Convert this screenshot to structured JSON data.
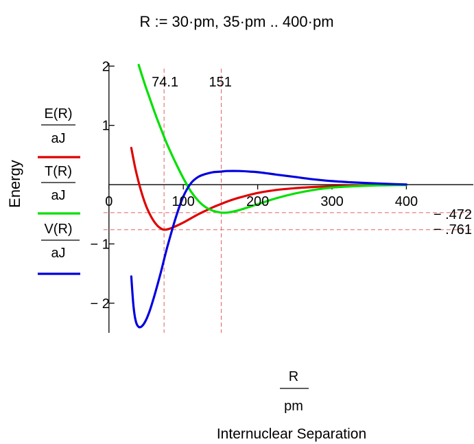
{
  "header": {
    "range_definition": "R := 30·pm, 35·pm .. 400·pm"
  },
  "chart_data": {
    "type": "line",
    "xlabel_fraction": {
      "numerator": "R",
      "denominator": "pm"
    },
    "xlabel_caption": "Internuclear Separation",
    "ylabel": "Energy",
    "xlim": [
      -10,
      490
    ],
    "ylim": [
      -2.5,
      2.05
    ],
    "x_ticks": [
      {
        "value": 0,
        "label": "0"
      },
      {
        "value": 100,
        "label": "100"
      },
      {
        "value": 200,
        "label": "200"
      },
      {
        "value": 300,
        "label": "300"
      },
      {
        "value": 400,
        "label": "400"
      }
    ],
    "y_ticks": [
      {
        "value": 2,
        "label": "2"
      },
      {
        "value": 1,
        "label": "1"
      },
      {
        "value": -1,
        "label": "− 1"
      },
      {
        "value": -2,
        "label": "− 2"
      }
    ],
    "markers": {
      "vertical": [
        {
          "value": 74.1,
          "label": "74.1"
        },
        {
          "value": 151,
          "label": "151"
        }
      ],
      "horizontal": [
        {
          "value": -0.472,
          "label": "− .472"
        },
        {
          "value": -0.761,
          "label": "− .761"
        }
      ],
      "color": "#e06060"
    },
    "series": [
      {
        "id": "E",
        "legend_numerator": "E(R)",
        "legend_denominator": "aJ",
        "color": "#e00000",
        "x": [
          30,
          35,
          40,
          45,
          50,
          55,
          60,
          65,
          70,
          74,
          80,
          90,
          100,
          110,
          120,
          130,
          140,
          150,
          160,
          175,
          200,
          225,
          250,
          275,
          300,
          325,
          350,
          375,
          400
        ],
        "y": [
          0.62,
          0.3,
          0.04,
          -0.18,
          -0.36,
          -0.5,
          -0.61,
          -0.69,
          -0.74,
          -0.76,
          -0.75,
          -0.7,
          -0.64,
          -0.57,
          -0.5,
          -0.44,
          -0.38,
          -0.33,
          -0.28,
          -0.22,
          -0.14,
          -0.09,
          -0.06,
          -0.04,
          -0.025,
          -0.015,
          -0.01,
          -0.005,
          -0.003
        ]
      },
      {
        "id": "T",
        "legend_numerator": "T(R)",
        "legend_denominator": "aJ",
        "color": "#00e000",
        "x": [
          40,
          45,
          50,
          55,
          60,
          65,
          70,
          75,
          80,
          90,
          100,
          110,
          120,
          130,
          140,
          150,
          160,
          175,
          200,
          225,
          250,
          275,
          300,
          325,
          350,
          375,
          400
        ],
        "y": [
          2.02,
          1.82,
          1.63,
          1.45,
          1.27,
          1.1,
          0.94,
          0.78,
          0.63,
          0.36,
          0.11,
          -0.11,
          -0.27,
          -0.38,
          -0.44,
          -0.47,
          -0.47,
          -0.43,
          -0.33,
          -0.23,
          -0.15,
          -0.09,
          -0.05,
          -0.03,
          -0.017,
          -0.01,
          -0.006
        ]
      },
      {
        "id": "V",
        "legend_numerator": "V(R)",
        "legend_denominator": "aJ",
        "color": "#0000e0",
        "x": [
          30,
          33,
          36,
          40,
          45,
          50,
          55,
          60,
          65,
          70,
          75,
          80,
          90,
          100,
          110,
          120,
          130,
          140,
          150,
          160,
          175,
          190,
          200,
          225,
          250,
          275,
          300,
          325,
          350,
          375,
          400
        ],
        "y": [
          -1.55,
          -2.05,
          -2.3,
          -2.4,
          -2.38,
          -2.28,
          -2.12,
          -1.92,
          -1.7,
          -1.47,
          -1.22,
          -0.98,
          -0.55,
          -0.2,
          0.02,
          0.13,
          0.18,
          0.21,
          0.22,
          0.23,
          0.23,
          0.22,
          0.21,
          0.17,
          0.13,
          0.09,
          0.06,
          0.04,
          0.025,
          0.012,
          0.003
        ]
      }
    ]
  }
}
